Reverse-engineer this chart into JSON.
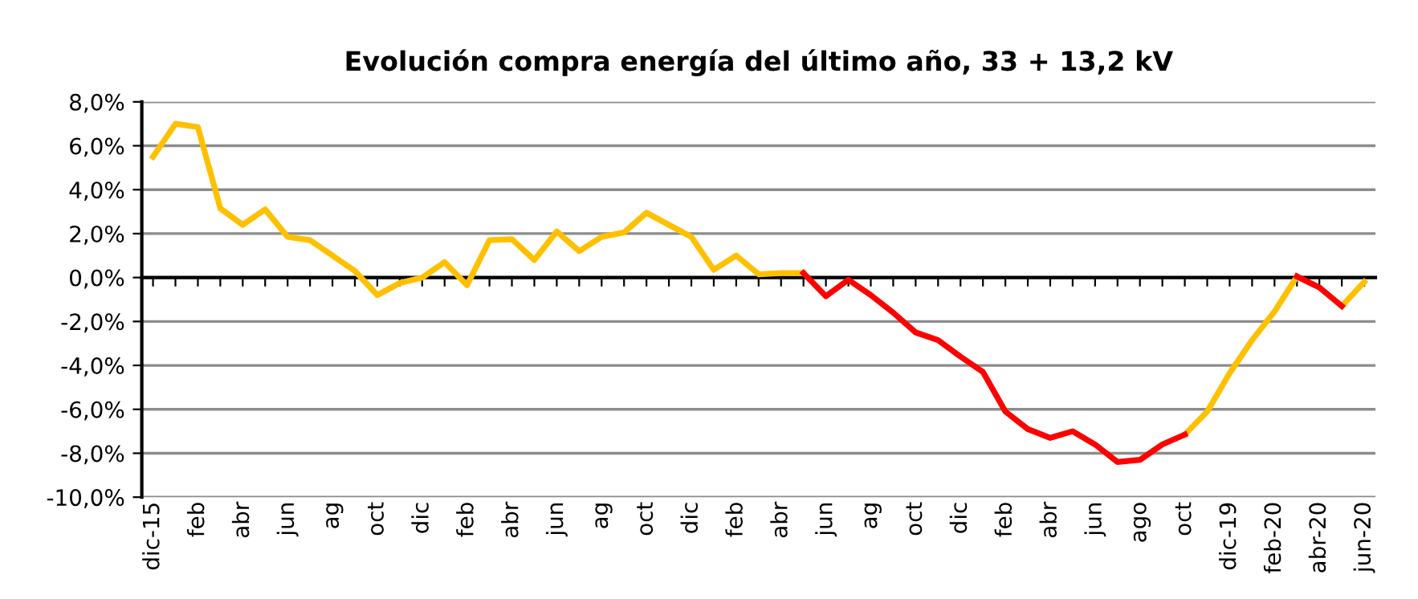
{
  "chart_data": {
    "type": "line",
    "title": "Evolución compra energía del último año, 33 + 13,2 kV",
    "categories": [
      "dic-15",
      null,
      "feb",
      null,
      "abr",
      null,
      "jun",
      null,
      "ag",
      null,
      "oct",
      null,
      "dic",
      null,
      "feb",
      null,
      "abr",
      null,
      "jun",
      null,
      "ag",
      null,
      "oct",
      null,
      "dic",
      null,
      "feb",
      null,
      "abr",
      null,
      "jun",
      null,
      "ag",
      null,
      "oct",
      null,
      "dic",
      null,
      "feb",
      null,
      "abr",
      null,
      "jun",
      null,
      "ago",
      null,
      "oct",
      null,
      "dic-19",
      null,
      "feb-20",
      null,
      "abr-20",
      null,
      "jun-20"
    ],
    "series": [
      {
        "color": "#ffc000",
        "values": [
          5.5,
          7.0,
          6.85,
          3.15,
          2.4,
          3.1,
          1.85,
          1.7,
          1.0,
          0.3,
          -0.8,
          -0.25,
          0.0,
          0.7,
          -0.35,
          1.7,
          1.75,
          0.8,
          2.1,
          1.2,
          1.85,
          2.05,
          2.95,
          2.4,
          1.85,
          0.35,
          1.0,
          0.15,
          0.2,
          0.2,
          null,
          null,
          null,
          null,
          null,
          null,
          null,
          null,
          null,
          null,
          null,
          null,
          null,
          null,
          null,
          null,
          -7.15,
          -6.1,
          -4.35,
          -2.85,
          -1.55,
          0.05,
          null,
          -1.3,
          -0.2
        ]
      },
      {
        "color": "#ff0000",
        "values": [
          null,
          null,
          null,
          null,
          null,
          null,
          null,
          null,
          null,
          null,
          null,
          null,
          null,
          null,
          null,
          null,
          null,
          null,
          null,
          null,
          null,
          null,
          null,
          null,
          null,
          null,
          null,
          null,
          null,
          0.2,
          -0.85,
          -0.1,
          -0.8,
          -1.6,
          -2.5,
          -2.85,
          -3.6,
          -4.3,
          -6.1,
          -6.9,
          -7.3,
          -7.0,
          -7.6,
          -8.4,
          -8.3,
          -7.6,
          -7.15,
          null,
          null,
          null,
          null,
          0.05,
          -0.45,
          -1.3,
          null
        ]
      }
    ],
    "ylim": [
      -10,
      8
    ],
    "yticks": [
      {
        "value": -10,
        "label": "-10,0%"
      },
      {
        "value": -8,
        "label": "-8,0%"
      },
      {
        "value": -6,
        "label": "-6,0%"
      },
      {
        "value": -4,
        "label": "-4,0%"
      },
      {
        "value": -2,
        "label": "-2,0%"
      },
      {
        "value": 0,
        "label": "0,0%"
      },
      {
        "value": 2,
        "label": "2,0%"
      },
      {
        "value": 4,
        "label": "4,0%"
      },
      {
        "value": 6,
        "label": "6,0%"
      },
      {
        "value": 8,
        "label": "8,0%"
      }
    ],
    "grid": "y",
    "marker": "none",
    "line_style": "solid"
  }
}
